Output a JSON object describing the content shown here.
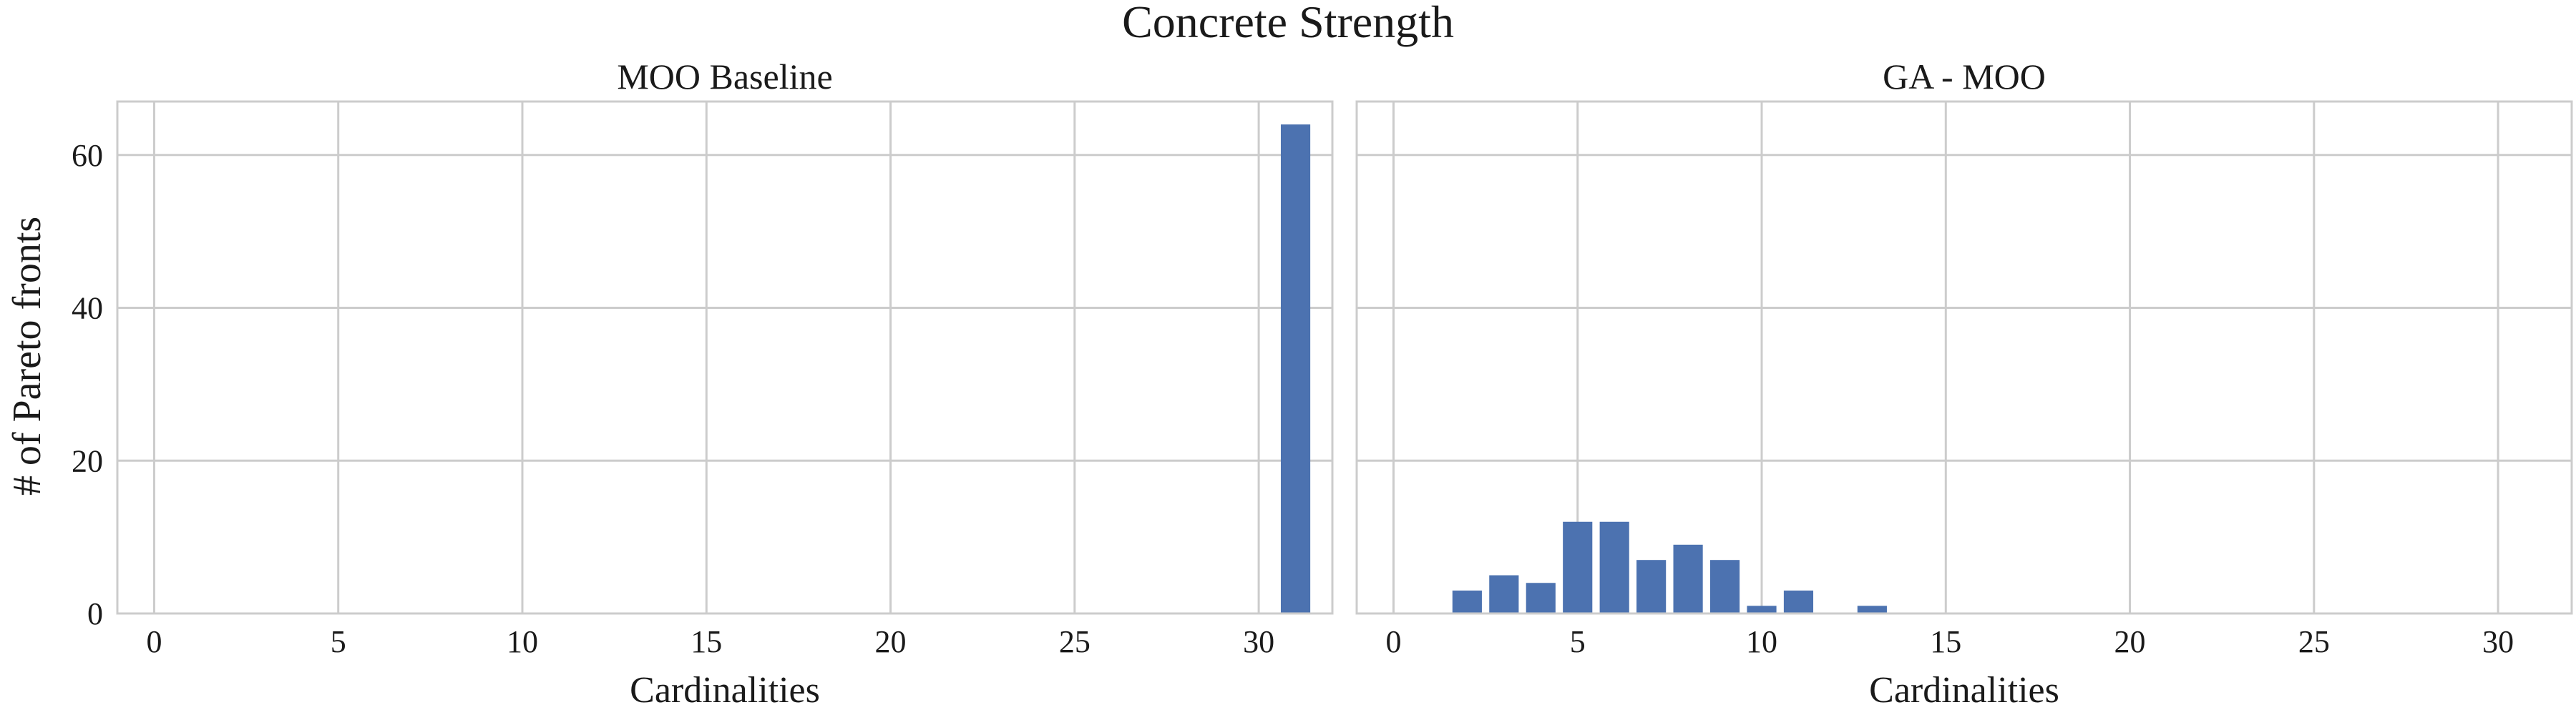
{
  "figure": {
    "title": "Concrete Strength",
    "ylabel": "# of Pareto fronts"
  },
  "chart_data": [
    {
      "type": "bar",
      "title": "MOO Baseline",
      "xlabel": "Cardinalities",
      "ylabel": "# of Pareto fronts",
      "xlim": [
        -1,
        32
      ],
      "ylim": [
        0,
        67
      ],
      "xticks": [
        0,
        5,
        10,
        15,
        20,
        25,
        30
      ],
      "yticks": [
        0,
        20,
        40,
        60
      ],
      "grid": true,
      "bar_color": "#4C72B0",
      "x": [
        31
      ],
      "values": [
        64
      ]
    },
    {
      "type": "bar",
      "title": "GA - MOO",
      "xlabel": "Cardinalities",
      "ylabel": "",
      "xlim": [
        -1,
        32
      ],
      "ylim": [
        0,
        67
      ],
      "xticks": [
        0,
        5,
        10,
        15,
        20,
        25,
        30
      ],
      "yticks": [
        0,
        20,
        40,
        60
      ],
      "grid": true,
      "bar_color": "#4C72B0",
      "x": [
        2,
        3,
        4,
        5,
        6,
        7,
        8,
        9,
        10,
        11,
        13
      ],
      "values": [
        3,
        5,
        4,
        12,
        12,
        7,
        9,
        7,
        1,
        3,
        1
      ]
    }
  ]
}
